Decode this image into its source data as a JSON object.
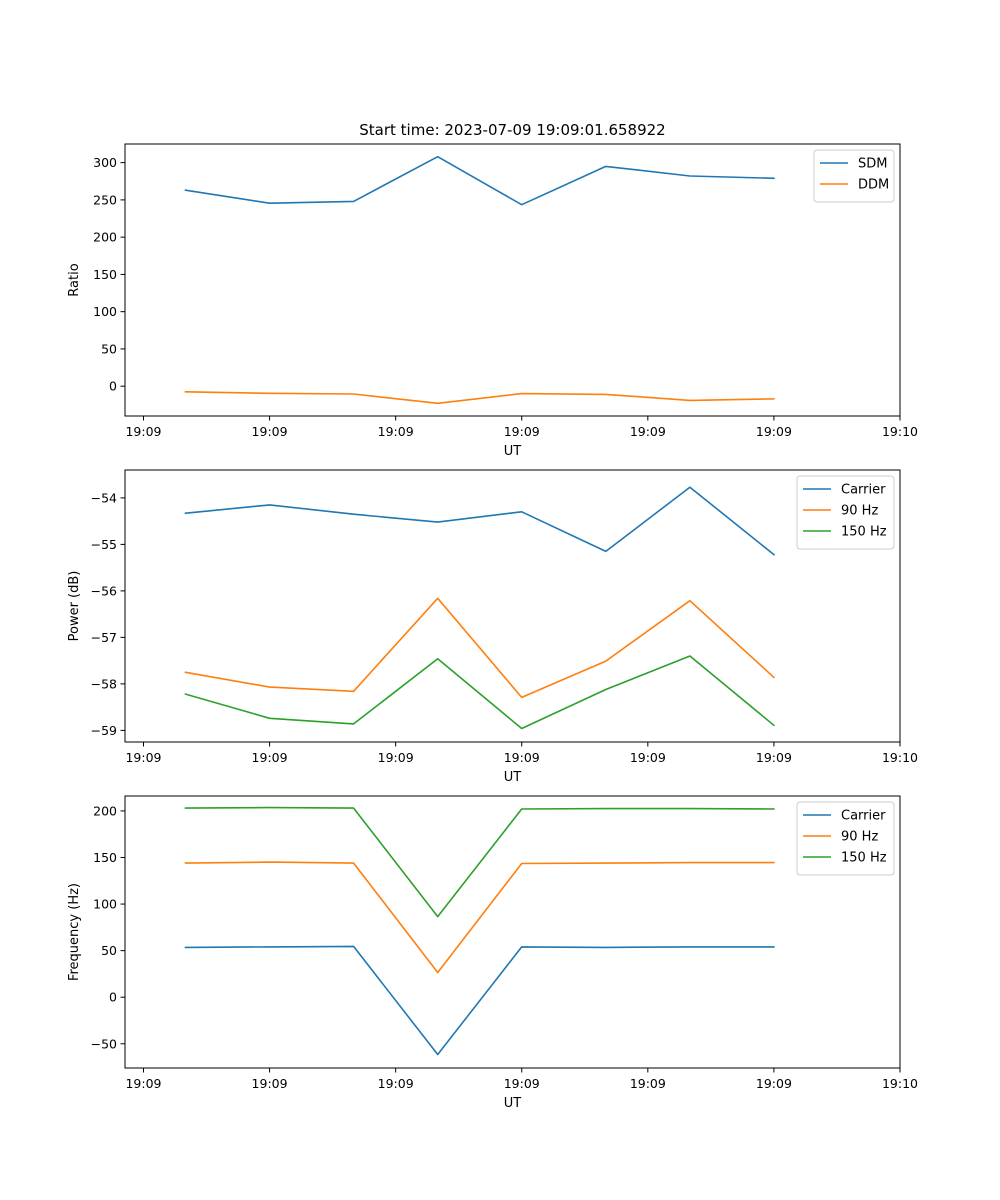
{
  "chart_data": [
    {
      "type": "line",
      "title": "Start time: 2023-07-09 19:09:01.658922",
      "xlabel": "UT",
      "ylabel": "Ratio",
      "x": [
        1,
        2,
        3,
        4,
        5,
        6,
        7,
        8
      ],
      "xlim": [
        0.28,
        9.5
      ],
      "xticks": [
        0.5,
        2,
        3.5,
        5,
        6.5,
        8,
        9.5
      ],
      "xtick_labels": [
        "19:09",
        "19:09",
        "19:09",
        "19:09",
        "19:09",
        "19:09",
        "19:10"
      ],
      "ylim": [
        -40,
        325
      ],
      "yticks": [
        0,
        50,
        100,
        150,
        200,
        250,
        300
      ],
      "ytick_labels": [
        "0",
        "50",
        "100",
        "150",
        "200",
        "250",
        "300"
      ],
      "legend": "top-right",
      "series": [
        {
          "name": "SDM",
          "color": "#1f77b4",
          "values": [
            263,
            245.5,
            248,
            308,
            243.5,
            295,
            282,
            279
          ]
        },
        {
          "name": "DDM",
          "color": "#ff7f0e",
          "values": [
            -7.5,
            -9.5,
            -10.5,
            -23,
            -10,
            -11,
            -19,
            -17
          ]
        }
      ]
    },
    {
      "type": "line",
      "title": "",
      "xlabel": "UT",
      "ylabel": "Power (dB)",
      "x": [
        1,
        2,
        3,
        4,
        5,
        6,
        7,
        8
      ],
      "xlim": [
        0.28,
        9.5
      ],
      "xticks": [
        0.5,
        2,
        3.5,
        5,
        6.5,
        8,
        9.5
      ],
      "xtick_labels": [
        "19:09",
        "19:09",
        "19:09",
        "19:09",
        "19:09",
        "19:09",
        "19:10"
      ],
      "ylim": [
        -59.25,
        -53.4
      ],
      "yticks": [
        -59,
        -58,
        -57,
        -56,
        -55,
        -54
      ],
      "ytick_labels": [
        "−59",
        "−58",
        "−57",
        "−56",
        "−55",
        "−54"
      ],
      "legend": "top-right",
      "series": [
        {
          "name": "Carrier",
          "color": "#1f77b4",
          "values": [
            -54.33,
            -54.15,
            -54.35,
            -54.52,
            -54.3,
            -55.15,
            -53.77,
            -55.22
          ]
        },
        {
          "name": "90 Hz",
          "color": "#ff7f0e",
          "values": [
            -57.75,
            -58.07,
            -58.16,
            -56.16,
            -58.29,
            -57.51,
            -56.21,
            -57.86
          ]
        },
        {
          "name": "150 Hz",
          "color": "#2ca02c",
          "values": [
            -58.22,
            -58.74,
            -58.86,
            -57.46,
            -58.96,
            -58.12,
            -57.4,
            -58.89
          ]
        }
      ]
    },
    {
      "type": "line",
      "title": "",
      "xlabel": "UT",
      "ylabel": "Frequency (Hz)",
      "x": [
        1,
        2,
        3,
        4,
        5,
        6,
        7,
        8
      ],
      "xlim": [
        0.28,
        9.5
      ],
      "xticks": [
        0.5,
        2,
        3.5,
        5,
        6.5,
        8,
        9.5
      ],
      "xtick_labels": [
        "19:09",
        "19:09",
        "19:09",
        "19:09",
        "19:09",
        "19:09",
        "19:10"
      ],
      "ylim": [
        -76,
        216
      ],
      "yticks": [
        -50,
        0,
        50,
        100,
        150,
        200
      ],
      "ytick_labels": [
        "−50",
        "0",
        "50",
        "100",
        "150",
        "200"
      ],
      "legend": "top-right",
      "series": [
        {
          "name": "Carrier",
          "color": "#1f77b4",
          "values": [
            53.5,
            54,
            54.5,
            -61.5,
            54,
            53.5,
            54,
            54
          ]
        },
        {
          "name": "90 Hz",
          "color": "#ff7f0e",
          "values": [
            144,
            145,
            144,
            26.5,
            143.5,
            144,
            144.5,
            144.5
          ]
        },
        {
          "name": "150 Hz",
          "color": "#2ca02c",
          "values": [
            203,
            203.5,
            203,
            86.5,
            202,
            202.5,
            202.5,
            202
          ]
        }
      ]
    }
  ]
}
